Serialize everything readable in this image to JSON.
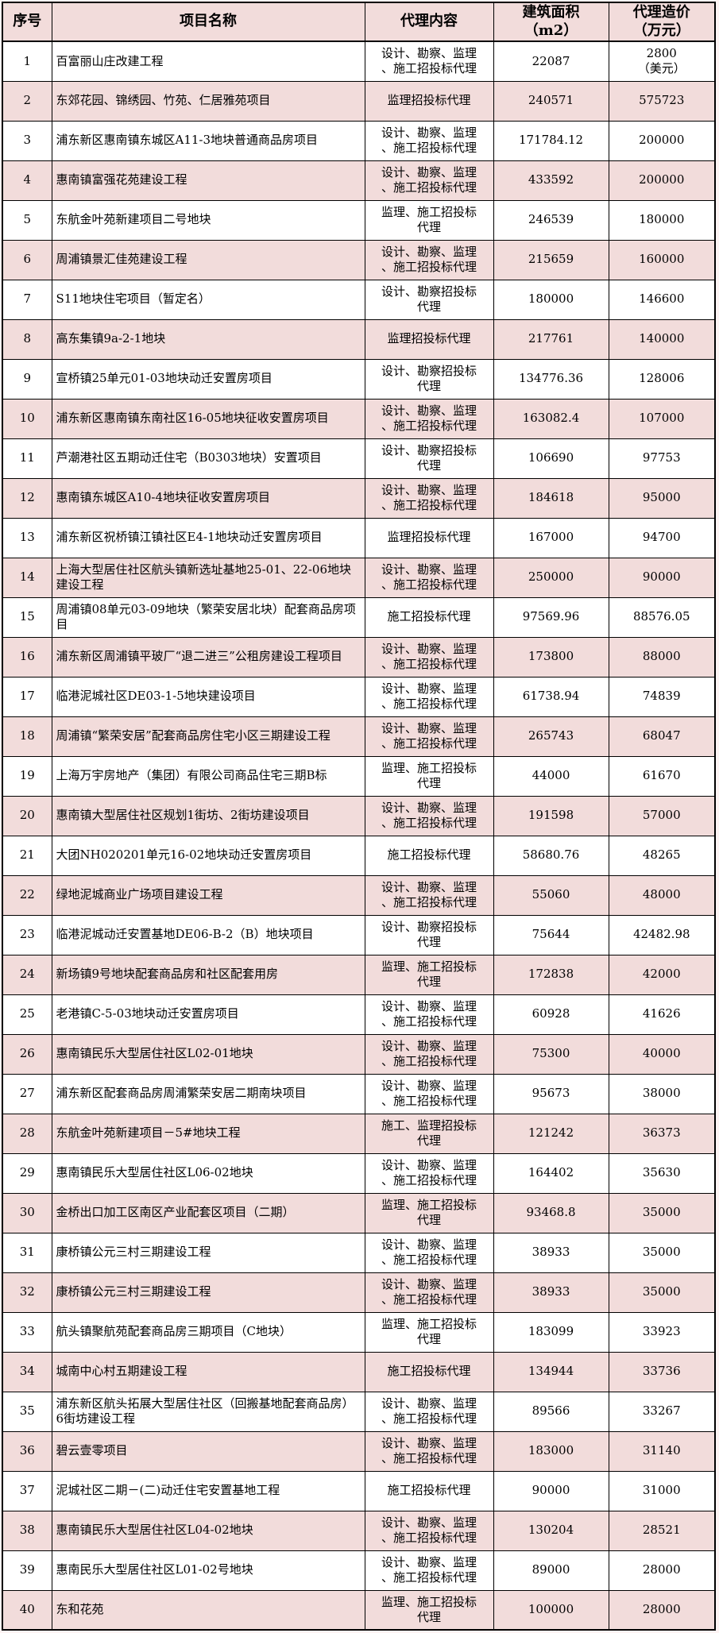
{
  "theme": {
    "row_pink": "#f2dcdb",
    "row_white": "#ffffff",
    "page_bg": "#fdf3f3",
    "border": "#000000",
    "text": "#000000"
  },
  "table": {
    "columns": [
      "序号",
      "项目名称",
      "代理内容",
      "建筑面积\n（m2）",
      "代理造价\n（万元）"
    ],
    "rows": [
      {
        "no": "1",
        "name": "百富丽山庄改建工程",
        "agency": "设计、勘察、监理\n、施工招投标代理",
        "area": "22087",
        "cost": "2800\n（美元）"
      },
      {
        "no": "2",
        "name": "东郊花园、锦绣园、竹苑、仁居雅苑项目",
        "agency": "监理招投标代理",
        "area": "240571",
        "cost": "575723"
      },
      {
        "no": "3",
        "name": "浦东新区惠南镇东城区A11-3地块普通商品房项目",
        "agency": "设计、勘察、监理\n、施工招投标代理",
        "area": "171784.12",
        "cost": "200000"
      },
      {
        "no": "4",
        "name": "惠南镇富强花苑建设工程",
        "agency": "设计、勘察、监理\n、施工招投标代理",
        "area": "433592",
        "cost": "200000"
      },
      {
        "no": "5",
        "name": "东航金叶苑新建项目二号地块",
        "agency": "监理、施工招投标\n代理",
        "area": "246539",
        "cost": "180000"
      },
      {
        "no": "6",
        "name": "周浦镇景汇佳苑建设工程",
        "agency": "设计、勘察、监理\n、施工招投标代理",
        "area": "215659",
        "cost": "160000"
      },
      {
        "no": "7",
        "name": "S11地块住宅项目（暂定名）",
        "agency": "设计、勘察招投标\n代理",
        "area": "180000",
        "cost": "146600"
      },
      {
        "no": "8",
        "name": "高东集镇9a-2-1地块",
        "agency": "监理招投标代理",
        "area": "217761",
        "cost": "140000"
      },
      {
        "no": "9",
        "name": "宣桥镇25单元01-03地块动迁安置房项目",
        "agency": "设计、勘察招投标\n代理",
        "area": "134776.36",
        "cost": "128006"
      },
      {
        "no": "10",
        "name": "浦东新区惠南镇东南社区16-05地块征收安置房项目",
        "agency": "设计、勘察、监理\n、施工招投标代理",
        "area": "163082.4",
        "cost": "107000"
      },
      {
        "no": "11",
        "name": "芦潮港社区五期动迁住宅（B0303地块）安置项目",
        "agency": "设计、勘察招投标\n代理",
        "area": "106690",
        "cost": "97753"
      },
      {
        "no": "12",
        "name": "惠南镇东城区A10-4地块征收安置房项目",
        "agency": "设计、勘察、监理\n、施工招投标代理",
        "area": "184618",
        "cost": "95000"
      },
      {
        "no": "13",
        "name": "浦东新区祝桥镇江镇社区E4-1地块动迁安置房项目",
        "agency": "监理招投标代理",
        "area": "167000",
        "cost": "94700"
      },
      {
        "no": "14",
        "name": "上海大型居住社区航头镇新选址基地25-01、22-06地块建设工程",
        "agency": "设计、勘察、监理\n、施工招投标代理",
        "area": "250000",
        "cost": "90000"
      },
      {
        "no": "15",
        "name": "周浦镇08单元03-09地块（繁荣安居北块）配套商品房项目",
        "agency": "施工招投标代理",
        "area": "97569.96",
        "cost": "88576.05"
      },
      {
        "no": "16",
        "name": "浦东新区周浦镇平玻厂“退二进三”公租房建设工程项目",
        "agency": "设计、勘察、监理\n、施工招投标代理",
        "area": "173800",
        "cost": "88000"
      },
      {
        "no": "17",
        "name": "临港泥城社区DE03-1-5地块建设项目",
        "agency": "设计、勘察、监理\n、施工招投标代理",
        "area": "61738.94",
        "cost": "74839"
      },
      {
        "no": "18",
        "name": "周浦镇“繁荣安居”配套商品房住宅小区三期建设工程",
        "agency": "设计、勘察、监理\n、施工招投标代理",
        "area": "265743",
        "cost": "68047"
      },
      {
        "no": "19",
        "name": "上海万宇房地产（集团）有限公司商品住宅三期B标",
        "agency": "监理、施工招投标\n代理",
        "area": "44000",
        "cost": "61670"
      },
      {
        "no": "20",
        "name": "惠南镇大型居住社区规划1街坊、2街坊建设项目",
        "agency": "设计、勘察、监理\n、施工招投标代理",
        "area": "191598",
        "cost": "57000"
      },
      {
        "no": "21",
        "name": "大团NH020201单元16-02地块动迁安置房项目",
        "agency": "施工招投标代理",
        "area": "58680.76",
        "cost": "48265"
      },
      {
        "no": "22",
        "name": "绿地泥城商业广场项目建设工程",
        "agency": "设计、勘察、监理\n、施工招投标代理",
        "area": "55060",
        "cost": "48000"
      },
      {
        "no": "23",
        "name": "临港泥城动迁安置基地DE06-B-2（B）地块项目",
        "agency": "设计、勘察招投标\n代理",
        "area": "75644",
        "cost": "42482.98"
      },
      {
        "no": "24",
        "name": "新场镇9号地块配套商品房和社区配套用房",
        "agency": "监理、施工招投标\n代理",
        "area": "172838",
        "cost": "42000"
      },
      {
        "no": "25",
        "name": "老港镇C-5-03地块动迁安置房项目",
        "agency": "设计、勘察、监理\n、施工招投标代理",
        "area": "60928",
        "cost": "41626"
      },
      {
        "no": "26",
        "name": "惠南镇民乐大型居住社区L02-01地块",
        "agency": "设计、勘察、监理\n、施工招投标代理",
        "area": "75300",
        "cost": "40000"
      },
      {
        "no": "27",
        "name": "浦东新区配套商品房周浦繁荣安居二期南块项目",
        "agency": "设计、勘察、监理\n、施工招投标代理",
        "area": "95673",
        "cost": "38000"
      },
      {
        "no": "28",
        "name": "东航金叶苑新建项目－5#地块工程",
        "agency": "施工、监理招投标\n代理",
        "area": "121242",
        "cost": "36373"
      },
      {
        "no": "29",
        "name": "惠南镇民乐大型居住社区L06-02地块",
        "agency": "设计、勘察、监理\n、施工招投标代理",
        "area": "164402",
        "cost": "35630"
      },
      {
        "no": "30",
        "name": "金桥出口加工区南区产业配套区项目（二期）",
        "agency": "监理、施工招投标\n代理",
        "area": "93468.8",
        "cost": "35000"
      },
      {
        "no": "31",
        "name": "康桥镇公元三村三期建设工程",
        "agency": "设计、勘察、监理\n、施工招投标代理",
        "area": "38933",
        "cost": "35000"
      },
      {
        "no": "32",
        "name": "康桥镇公元三村三期建设工程",
        "agency": "设计、勘察、监理\n、施工招投标代理",
        "area": "38933",
        "cost": "35000"
      },
      {
        "no": "33",
        "name": "航头镇聚航苑配套商品房三期项目（C地块）",
        "agency": "监理、施工招投标\n代理",
        "area": "183099",
        "cost": "33923"
      },
      {
        "no": "34",
        "name": "城南中心村五期建设工程",
        "agency": "施工招投标代理",
        "area": "134944",
        "cost": "33736"
      },
      {
        "no": "35",
        "name": "浦东新区航头拓展大型居住社区（回搬基地配套商品房）6街坊建设工程",
        "agency": "设计、勘察、监理\n、施工招投标代理",
        "area": "89566",
        "cost": "33267"
      },
      {
        "no": "36",
        "name": "碧云壹零项目",
        "agency": "设计、勘察、监理\n、施工招投标代理",
        "area": "183000",
        "cost": "31140"
      },
      {
        "no": "37",
        "name": "泥城社区二期－(二)动迁住宅安置基地工程",
        "agency": "施工招投标代理",
        "area": "90000",
        "cost": "31000"
      },
      {
        "no": "38",
        "name": "惠南镇民乐大型居住社区L04-02地块",
        "agency": "设计、勘察、监理\n、施工招投标代理",
        "area": "130204",
        "cost": "28521"
      },
      {
        "no": "39",
        "name": "惠南民乐大型居住社区L01-02号地块",
        "agency": "设计、勘察、监理\n、施工招投标代理",
        "area": "89000",
        "cost": "28000"
      },
      {
        "no": "40",
        "name": "东和花苑",
        "agency": "监理、施工招投标\n代理",
        "area": "100000",
        "cost": "28000"
      }
    ]
  }
}
